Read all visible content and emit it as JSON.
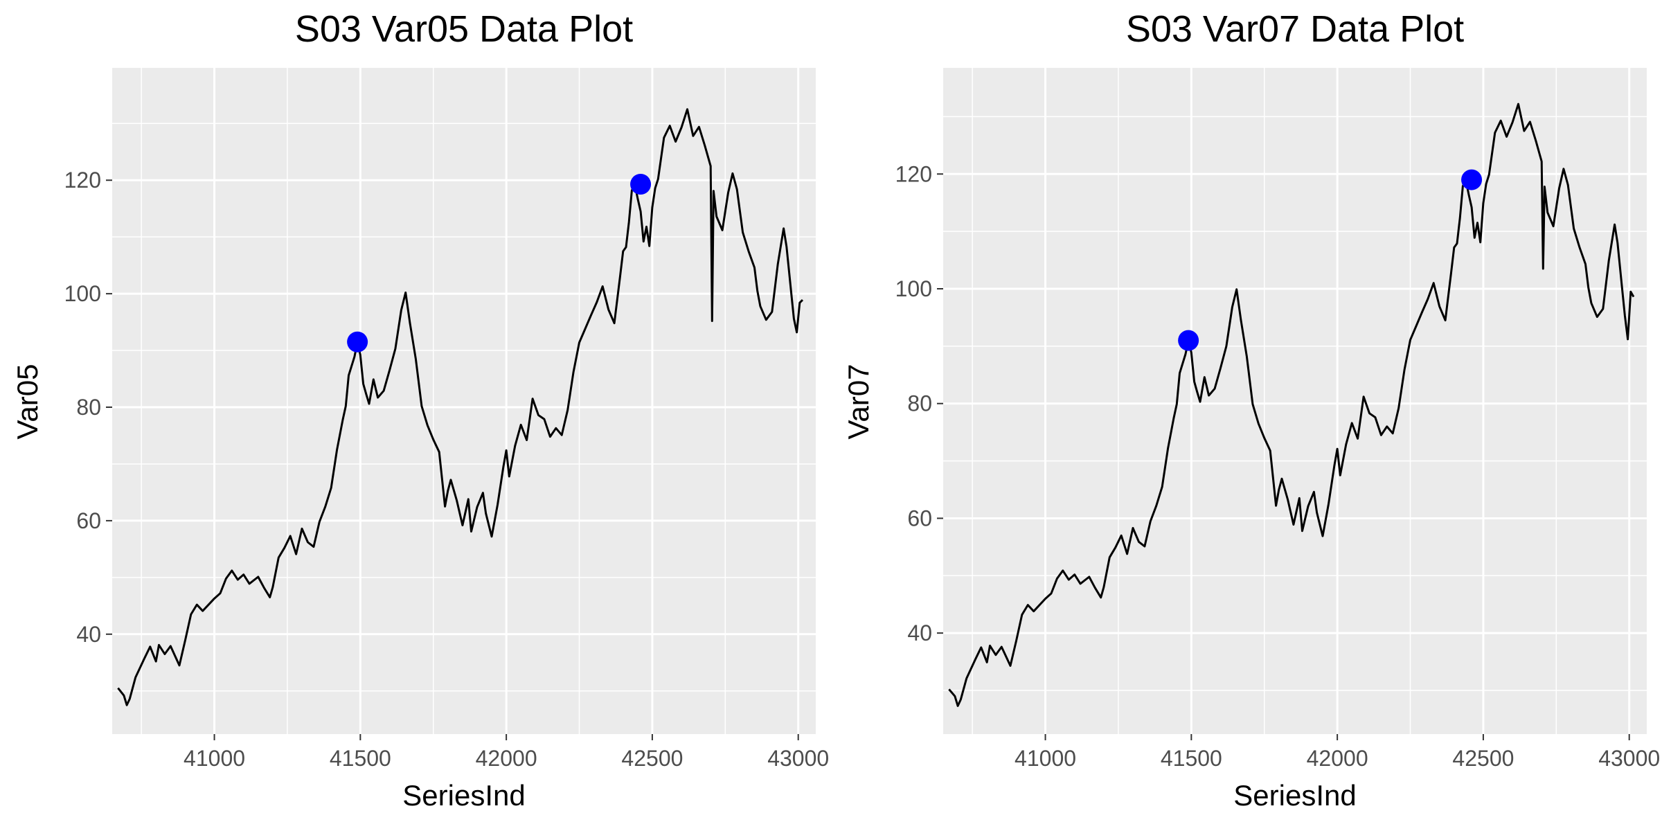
{
  "colors": {
    "panel_background": "#ebebeb",
    "grid_line": "#ffffff",
    "series_line": "#000000",
    "highlight_point": "#0000ff",
    "tick_text": "#4d4d4d",
    "tick_mark": "#333333"
  },
  "chart_data": [
    {
      "type": "line",
      "title": "S03 Var05 Data Plot",
      "xlabel": "SeriesInd",
      "ylabel": "Var05",
      "xlim": [
        40650,
        43060
      ],
      "ylim": [
        22.4,
        139.8
      ],
      "x_ticks": [
        41000,
        41500,
        42000,
        42500,
        43000
      ],
      "y_ticks": [
        40,
        60,
        80,
        100,
        120
      ],
      "grid": true,
      "series": [
        {
          "name": "Var05",
          "x": [
            40670,
            40690,
            40700,
            40710,
            40730,
            40760,
            40780,
            40800,
            40810,
            40830,
            40850,
            40880,
            40900,
            40920,
            40940,
            40960,
            41000,
            41020,
            41040,
            41060,
            41080,
            41100,
            41120,
            41150,
            41170,
            41190,
            41200,
            41220,
            41240,
            41260,
            41280,
            41300,
            41320,
            41340,
            41360,
            41380,
            41400,
            41420,
            41440,
            41450,
            41460,
            41480,
            41490,
            41500,
            41510,
            41520,
            41530,
            41545,
            41560,
            41580,
            41600,
            41620,
            41640,
            41655,
            41670,
            41690,
            41710,
            41730,
            41750,
            41770,
            41790,
            41800,
            41810,
            41830,
            41850,
            41870,
            41880,
            41900,
            41920,
            41930,
            41950,
            41970,
            41990,
            42000,
            42010,
            42030,
            42050,
            42070,
            42090,
            42110,
            42130,
            42150,
            42170,
            42190,
            42210,
            42230,
            42250,
            42270,
            42290,
            42310,
            42330,
            42350,
            42370,
            42390,
            42400,
            42410,
            42420,
            42430,
            42440,
            42450,
            42460,
            42470,
            42480,
            42490,
            42500,
            42510,
            42520,
            42540,
            42560,
            42580,
            42600,
            42620,
            42640,
            42660,
            42680,
            42700,
            42705,
            42710,
            42720,
            42740,
            42760,
            42775,
            42790,
            42810,
            42830,
            42850,
            42860,
            42870,
            42890,
            42910,
            42930,
            42950,
            42960,
            42975,
            42985,
            42995,
            43005,
            43015
          ],
          "values": [
            30.5,
            29.2,
            27.5,
            28.6,
            32.4,
            35.7,
            37.8,
            35.2,
            38.1,
            36.5,
            37.9,
            34.5,
            38.9,
            43.5,
            45.2,
            44.1,
            46.3,
            47.2,
            49.8,
            51.2,
            49.6,
            50.5,
            48.9,
            50.1,
            48.2,
            46.5,
            48.3,
            53.5,
            55.2,
            57.3,
            54.1,
            58.6,
            56.2,
            55.4,
            59.8,
            62.5,
            65.8,
            72.5,
            77.8,
            80.2,
            85.6,
            88.9,
            91.5,
            89.2,
            84.1,
            82.3,
            80.6,
            84.9,
            81.7,
            82.9,
            86.5,
            90.3,
            97.1,
            100.2,
            94.8,
            88.5,
            80.2,
            76.8,
            74.3,
            72.1,
            62.5,
            65.3,
            67.2,
            63.6,
            59.2,
            63.8,
            58.1,
            62.4,
            64.9,
            61.3,
            57.2,
            62.8,
            69.5,
            72.4,
            67.8,
            73.2,
            76.9,
            74.2,
            81.5,
            78.6,
            77.9,
            74.8,
            76.3,
            75.1,
            79.5,
            86.2,
            91.4,
            93.8,
            96.2,
            98.5,
            101.3,
            97.2,
            94.8,
            103.1,
            107.5,
            108.2,
            112.6,
            118.2,
            119.3,
            116.8,
            114.5,
            109.2,
            111.8,
            108.4,
            115.2,
            118.6,
            120.2,
            127.5,
            129.6,
            126.8,
            129.3,
            132.5,
            127.8,
            129.4,
            126.1,
            122.5,
            95.2,
            118.1,
            113.6,
            111.2,
            117.8,
            121.2,
            118.4,
            110.8,
            107.5,
            104.6,
            100.5,
            97.8,
            95.4,
            96.8,
            105.2,
            111.5,
            108.3,
            100.6,
            95.6,
            93.2,
            98.4,
            98.9
          ]
        }
      ],
      "highlights": [
        {
          "x": 41490,
          "y": 91.5
        },
        {
          "x": 42460,
          "y": 119.3
        }
      ]
    },
    {
      "type": "line",
      "title": "S03 Var07 Data Plot",
      "xlabel": "SeriesInd",
      "ylabel": "Var07",
      "xlim": [
        40650,
        43060
      ],
      "ylim": [
        22.4,
        138.5
      ],
      "x_ticks": [
        41000,
        41500,
        42000,
        42500,
        43000
      ],
      "y_ticks": [
        40,
        60,
        80,
        100,
        120
      ],
      "grid": true,
      "series": [
        {
          "name": "Var07",
          "x": [
            40670,
            40690,
            40700,
            40710,
            40730,
            40760,
            40780,
            40800,
            40810,
            40830,
            40850,
            40880,
            40900,
            40920,
            40940,
            40960,
            41000,
            41020,
            41040,
            41060,
            41080,
            41100,
            41120,
            41150,
            41170,
            41190,
            41200,
            41220,
            41240,
            41260,
            41280,
            41300,
            41320,
            41340,
            41360,
            41380,
            41400,
            41420,
            41440,
            41450,
            41460,
            41480,
            41490,
            41500,
            41510,
            41520,
            41530,
            41545,
            41560,
            41580,
            41600,
            41620,
            41640,
            41655,
            41670,
            41690,
            41710,
            41730,
            41750,
            41770,
            41790,
            41800,
            41810,
            41830,
            41850,
            41870,
            41880,
            41900,
            41920,
            41930,
            41950,
            41970,
            41990,
            42000,
            42010,
            42030,
            42050,
            42070,
            42090,
            42110,
            42130,
            42150,
            42170,
            42190,
            42210,
            42230,
            42250,
            42270,
            42290,
            42310,
            42330,
            42350,
            42370,
            42390,
            42400,
            42410,
            42420,
            42430,
            42440,
            42450,
            42460,
            42470,
            42480,
            42490,
            42500,
            42510,
            42520,
            42540,
            42560,
            42580,
            42600,
            42620,
            42640,
            42660,
            42680,
            42700,
            42705,
            42710,
            42720,
            42740,
            42760,
            42775,
            42790,
            42810,
            42830,
            42850,
            42860,
            42870,
            42890,
            42910,
            42930,
            42950,
            42960,
            42975,
            42985,
            42995,
            43005,
            43015
          ],
          "values": [
            30.2,
            29.0,
            27.3,
            28.4,
            32.1,
            35.4,
            37.5,
            34.9,
            37.8,
            36.2,
            37.6,
            34.3,
            38.6,
            43.2,
            44.9,
            43.8,
            46.0,
            46.9,
            49.5,
            50.9,
            49.3,
            50.2,
            48.6,
            49.8,
            47.9,
            46.2,
            48.0,
            53.2,
            54.9,
            57.0,
            53.8,
            58.3,
            55.9,
            55.1,
            59.5,
            62.2,
            65.5,
            72.2,
            77.5,
            79.9,
            85.3,
            88.6,
            91.0,
            88.9,
            83.8,
            82.0,
            80.3,
            84.6,
            81.4,
            82.6,
            86.2,
            90.0,
            96.8,
            99.9,
            94.5,
            88.2,
            79.9,
            76.5,
            74.0,
            71.8,
            62.2,
            65.0,
            66.9,
            63.3,
            58.9,
            63.5,
            57.8,
            62.1,
            64.6,
            61.0,
            56.9,
            62.5,
            69.2,
            72.1,
            67.5,
            72.9,
            76.6,
            73.9,
            81.2,
            78.3,
            77.6,
            74.5,
            76.0,
            74.8,
            79.2,
            85.9,
            91.1,
            93.5,
            95.9,
            98.2,
            101.0,
            96.9,
            94.5,
            102.8,
            107.2,
            107.9,
            112.3,
            117.9,
            119.0,
            116.5,
            114.2,
            108.9,
            111.5,
            108.1,
            114.9,
            118.3,
            119.9,
            127.2,
            129.3,
            126.5,
            129.0,
            132.2,
            127.5,
            129.1,
            125.8,
            122.2,
            103.5,
            117.8,
            113.3,
            110.9,
            117.5,
            120.9,
            118.1,
            110.5,
            107.2,
            104.3,
            100.2,
            97.5,
            95.1,
            96.5,
            104.9,
            111.2,
            108.0,
            100.3,
            95.3,
            91.2,
            99.5,
            98.6
          ]
        }
      ],
      "highlights": [
        {
          "x": 41490,
          "y": 91.0
        },
        {
          "x": 42460,
          "y": 119.0
        }
      ]
    }
  ]
}
